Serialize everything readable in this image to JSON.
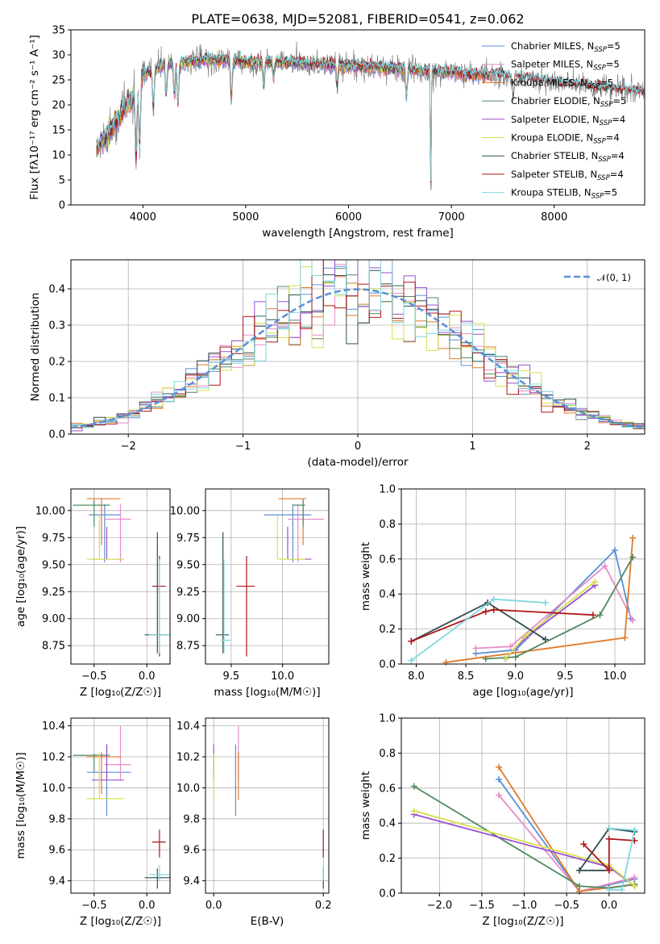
{
  "chart_data": [
    {
      "id": "spectrum",
      "type": "line",
      "title": "PLATE=0638, MJD=52081, FIBERID=0541, z=0.062",
      "xlabel": "wavelength [Angstrom, rest frame]",
      "ylabel": "Flux [fλ10⁻¹⁷ erg cm⁻² s⁻¹ A⁻¹]",
      "xlim": [
        3300,
        8880
      ],
      "ylim": [
        0,
        35
      ],
      "xticks": [
        4000,
        5000,
        6000,
        7000,
        8000
      ],
      "yticks": [
        0,
        5,
        10,
        15,
        20,
        25,
        30,
        35
      ],
      "grid": false,
      "legend_position": "top-right",
      "continuum_x": [
        3550,
        3650,
        3750,
        3850,
        3950,
        4000,
        4100,
        4200,
        4400,
        4600,
        4800,
        5000,
        5200,
        5400,
        5600,
        5800,
        6000,
        6200,
        6400,
        6600,
        6800,
        7000,
        7200,
        7400,
        7600,
        7800,
        8000,
        8200,
        8400,
        8600,
        8800
      ],
      "continuum_y": [
        11,
        14,
        17,
        20,
        23,
        26,
        27,
        28,
        28.5,
        29,
        29,
        28.5,
        28.5,
        28.5,
        28.3,
        28,
        27.8,
        27.5,
        27.3,
        27,
        26.8,
        26.5,
        26,
        26,
        25.5,
        25,
        24.5,
        24,
        23.5,
        23,
        22.5
      ],
      "series": [
        {
          "name": "Chabrier MILES, N",
          "sub": "SSP",
          "suffix": "=5",
          "color": "#5b8fd6",
          "xmax": 7400
        },
        {
          "name": "Salpeter MILES, N",
          "sub": "SSP",
          "suffix": "=5",
          "color": "#e68cc8",
          "xmax": 7400
        },
        {
          "name": "Kroupa MILES, N",
          "sub": "SSP",
          "suffix": "=5",
          "color": "#e07a2a",
          "xmax": 7400
        },
        {
          "name": "Chabrier ELODIE, N",
          "sub": "SSP",
          "suffix": "=5",
          "color": "#4f8a5f",
          "xmax": 7000
        },
        {
          "name": "Salpeter ELODIE, N",
          "sub": "SSP",
          "suffix": "=4",
          "color": "#9b4fcf",
          "xmax": 6800
        },
        {
          "name": "Kroupa ELODIE, N",
          "sub": "SSP",
          "suffix": "=4",
          "color": "#d6e04a",
          "xmax": 6800
        },
        {
          "name": "Chabrier STELIB, N",
          "sub": "SSP",
          "suffix": "=4",
          "color": "#2f4f4f",
          "xmax": 8880
        },
        {
          "name": "Salpeter STELIB, N",
          "sub": "SSP",
          "suffix": "=4",
          "color": "#b01515",
          "xmax": 8880
        },
        {
          "name": "Kroupa STELIB, N",
          "sub": "SSP",
          "suffix": "=5",
          "color": "#7fd6de",
          "xmax": 8880
        }
      ],
      "data_series": {
        "name": "data",
        "color": "#7f7f7f"
      }
    },
    {
      "id": "residuals",
      "type": "line",
      "xlabel": "(data-model)/error",
      "ylabel": "Normed distribution",
      "xlim": [
        -2.5,
        2.5
      ],
      "ylim": [
        0,
        0.48
      ],
      "xticks": [
        -2,
        -1,
        0,
        1,
        2
      ],
      "yticks": [
        0.0,
        0.1,
        0.2,
        0.3,
        0.4
      ],
      "grid": true,
      "legend_position": "top-right",
      "reference_curve": {
        "name": "𝒩(0, 1)",
        "color": "#5b8fd6",
        "style": "dashed"
      },
      "histogram_bin_width": 0.1,
      "histogram_series_colors": [
        "#5b8fd6",
        "#e68cc8",
        "#e07a2a",
        "#4f8a5f",
        "#9b4fcf",
        "#d6e04a",
        "#2f4f4f",
        "#b01515",
        "#7fd6de"
      ]
    },
    {
      "id": "age-vs-Z",
      "type": "scatter",
      "xlabel": "Z [log₁₀(Z/Z☉)]",
      "ylabel": "age  [log₁₀(age/yr)]",
      "xlim": [
        -0.72,
        0.22
      ],
      "ylim": [
        8.58,
        10.2
      ],
      "xticks": [
        -0.5,
        0.0
      ],
      "yticks": [
        8.75,
        9.0,
        9.25,
        9.5,
        9.75,
        10.0
      ],
      "grid": true,
      "points": [
        {
          "x": -0.4,
          "y": 9.96,
          "xlo": -0.55,
          "xhi": -0.25,
          "ylo": 9.52,
          "yhi": 10.06,
          "color": "#5b8fd6"
        },
        {
          "x": -0.25,
          "y": 9.92,
          "xlo": -0.4,
          "xhi": -0.15,
          "ylo": 9.52,
          "yhi": 10.06,
          "color": "#e68cc8"
        },
        {
          "x": -0.43,
          "y": 10.11,
          "xlo": -0.57,
          "xhi": -0.25,
          "ylo": 9.68,
          "yhi": 10.11,
          "color": "#e07a2a"
        },
        {
          "x": -0.5,
          "y": 10.05,
          "xlo": -0.7,
          "xhi": -0.35,
          "ylo": 9.85,
          "yhi": 10.1,
          "color": "#4f8a5f"
        },
        {
          "x": -0.38,
          "y": 9.55,
          "xlo": -0.52,
          "xhi": -0.22,
          "ylo": 9.55,
          "yhi": 9.85,
          "color": "#9b4fcf"
        },
        {
          "x": -0.45,
          "y": 9.55,
          "xlo": -0.57,
          "xhi": -0.22,
          "ylo": 9.55,
          "yhi": 9.96,
          "color": "#d6e04a"
        },
        {
          "x": 0.1,
          "y": 8.85,
          "xlo": -0.02,
          "xhi": 0.22,
          "ylo": 8.68,
          "yhi": 9.8,
          "color": "#2f4f4f"
        },
        {
          "x": 0.12,
          "y": 9.3,
          "xlo": 0.05,
          "xhi": 0.18,
          "ylo": 8.65,
          "yhi": 9.58,
          "color": "#b01515"
        },
        {
          "x": 0.12,
          "y": 8.85,
          "xlo": 0.02,
          "xhi": 0.22,
          "ylo": 8.68,
          "yhi": 9.55,
          "color": "#7fd6de"
        }
      ]
    },
    {
      "id": "age-vs-mass",
      "type": "scatter",
      "xlabel": "mass [log₁₀(M/M☉)]",
      "ylabel": "",
      "xlim": [
        9.25,
        10.45
      ],
      "ylim": [
        8.58,
        10.2
      ],
      "xticks": [
        9.5,
        10.0
      ],
      "yticks": [
        8.75,
        9.0,
        9.25,
        9.5,
        9.75,
        10.0
      ],
      "grid": true,
      "points": [
        {
          "x": 10.1,
          "y": 9.96,
          "xlo": 9.82,
          "xhi": 10.28,
          "ylo": 9.52,
          "yhi": 10.06,
          "color": "#5b8fd6"
        },
        {
          "x": 10.15,
          "y": 9.92,
          "xlo": 10.05,
          "xhi": 10.4,
          "ylo": 9.52,
          "yhi": 10.06,
          "color": "#e68cc8"
        },
        {
          "x": 10.2,
          "y": 10.11,
          "xlo": 9.96,
          "xhi": 10.23,
          "ylo": 9.68,
          "yhi": 10.11,
          "color": "#e07a2a"
        },
        {
          "x": 10.2,
          "y": 10.05,
          "xlo": 10.1,
          "xhi": 10.22,
          "ylo": 9.85,
          "yhi": 10.1,
          "color": "#4f8a5f"
        },
        {
          "x": 10.05,
          "y": 9.55,
          "xlo": 10.05,
          "xhi": 10.28,
          "ylo": 9.55,
          "yhi": 9.85,
          "color": "#9b4fcf"
        },
        {
          "x": 9.95,
          "y": 9.55,
          "xlo": 9.95,
          "xhi": 10.22,
          "ylo": 9.55,
          "yhi": 9.96,
          "color": "#d6e04a"
        },
        {
          "x": 9.42,
          "y": 8.85,
          "xlo": 9.35,
          "xhi": 9.48,
          "ylo": 8.68,
          "yhi": 9.8,
          "color": "#2f4f4f"
        },
        {
          "x": 9.65,
          "y": 9.3,
          "xlo": 9.55,
          "xhi": 9.73,
          "ylo": 8.65,
          "yhi": 9.58,
          "color": "#b01515"
        },
        {
          "x": 9.43,
          "y": 8.8,
          "xlo": 9.4,
          "xhi": 9.5,
          "ylo": 8.68,
          "yhi": 9.55,
          "color": "#7fd6de"
        }
      ]
    },
    {
      "id": "weight-vs-age",
      "type": "line",
      "xlabel": "age  [log₁₀(age/yr)]",
      "ylabel": "mass weight",
      "xlim": [
        7.85,
        10.3
      ],
      "ylim": [
        0,
        1.0
      ],
      "xticks": [
        8.0,
        8.5,
        9.0,
        9.5,
        10.0
      ],
      "yticks": [
        0.0,
        0.2,
        0.4,
        0.6,
        0.8,
        1.0
      ],
      "grid": true,
      "series": [
        {
          "name": "Chabrier MILES",
          "color": "#5b8fd6",
          "x": [
            8.6,
            9.0,
            10.0,
            10.16
          ],
          "y": [
            0.06,
            0.08,
            0.65,
            0.26
          ]
        },
        {
          "name": "Salpeter MILES",
          "color": "#e68cc8",
          "x": [
            8.6,
            8.95,
            9.9,
            10.18
          ],
          "y": [
            0.09,
            0.1,
            0.56,
            0.25
          ]
        },
        {
          "name": "Kroupa MILES",
          "color": "#e07a2a",
          "x": [
            8.3,
            10.1,
            10.18
          ],
          "y": [
            0.01,
            0.15,
            0.72
          ]
        },
        {
          "name": "Chabrier ELODIE",
          "color": "#4f8a5f",
          "x": [
            8.7,
            9.0,
            9.85,
            10.18
          ],
          "y": [
            0.03,
            0.04,
            0.28,
            0.61
          ]
        },
        {
          "name": "Salpeter ELODIE",
          "color": "#9b4fcf",
          "x": [
            8.9,
            9.1,
            9.8
          ],
          "y": [
            0.03,
            0.15,
            0.45
          ]
        },
        {
          "name": "Kroupa ELODIE",
          "color": "#d6e04a",
          "x": [
            8.9,
            9.1,
            9.8
          ],
          "y": [
            0.03,
            0.16,
            0.47
          ]
        },
        {
          "name": "Chabrier STELIB",
          "color": "#2f4f4f",
          "x": [
            7.95,
            8.72,
            9.3
          ],
          "y": [
            0.13,
            0.35,
            0.14
          ]
        },
        {
          "name": "Salpeter STELIB",
          "color": "#b01515",
          "x": [
            7.95,
            8.7,
            8.78,
            9.78
          ],
          "y": [
            0.13,
            0.3,
            0.31,
            0.28
          ]
        },
        {
          "name": "Kroupa STELIB",
          "color": "#7fd6de",
          "x": [
            7.95,
            8.78,
            9.3
          ],
          "y": [
            0.02,
            0.37,
            0.35
          ]
        }
      ]
    },
    {
      "id": "mass-vs-Z",
      "type": "scatter",
      "xlabel": "Z [log₁₀(Z/Z☉)]",
      "ylabel": "mass [log₁₀(M/M☉)]",
      "xlim": [
        -0.72,
        0.22
      ],
      "ylim": [
        9.32,
        10.45
      ],
      "xticks": [
        -0.5,
        0.0
      ],
      "yticks": [
        9.4,
        9.6,
        9.8,
        10.0,
        10.2,
        10.4
      ],
      "grid": true,
      "points": [
        {
          "x": -0.38,
          "y": 10.1,
          "xlo": -0.57,
          "xhi": -0.15,
          "ylo": 9.82,
          "yhi": 10.28,
          "color": "#5b8fd6"
        },
        {
          "x": -0.25,
          "y": 10.15,
          "xlo": -0.4,
          "xhi": -0.15,
          "ylo": 10.05,
          "yhi": 10.4,
          "color": "#e68cc8"
        },
        {
          "x": -0.43,
          "y": 10.2,
          "xlo": -0.57,
          "xhi": -0.25,
          "ylo": 9.96,
          "yhi": 10.23,
          "color": "#e07a2a"
        },
        {
          "x": -0.5,
          "y": 10.21,
          "xlo": -0.7,
          "xhi": -0.35,
          "ylo": 10.1,
          "yhi": 10.22,
          "color": "#4f8a5f"
        },
        {
          "x": -0.38,
          "y": 10.05,
          "xlo": -0.52,
          "xhi": -0.22,
          "ylo": 10.05,
          "yhi": 10.28,
          "color": "#9b4fcf"
        },
        {
          "x": -0.45,
          "y": 9.93,
          "xlo": -0.57,
          "xhi": -0.22,
          "ylo": 9.93,
          "yhi": 10.22,
          "color": "#d6e04a"
        },
        {
          "x": 0.1,
          "y": 9.42,
          "xlo": -0.02,
          "xhi": 0.22,
          "ylo": 9.35,
          "yhi": 9.48,
          "color": "#2f4f4f"
        },
        {
          "x": 0.12,
          "y": 9.65,
          "xlo": 0.05,
          "xhi": 0.18,
          "ylo": 9.55,
          "yhi": 9.73,
          "color": "#b01515"
        },
        {
          "x": 0.12,
          "y": 9.44,
          "xlo": 0.02,
          "xhi": 0.22,
          "ylo": 9.4,
          "yhi": 9.5,
          "color": "#7fd6de"
        }
      ]
    },
    {
      "id": "mass-vs-ebv",
      "type": "scatter",
      "xlabel": "E(B-V)",
      "ylabel": "",
      "xlim": [
        -0.015,
        0.21
      ],
      "ylim": [
        9.32,
        10.45
      ],
      "xticks": [
        0.0,
        0.2
      ],
      "yticks": [
        9.4,
        9.6,
        9.8,
        10.0,
        10.2,
        10.4
      ],
      "grid": true,
      "points": [
        {
          "x": 0.04,
          "y": 10.1,
          "ylo": 9.82,
          "yhi": 10.28,
          "color": "#5b8fd6"
        },
        {
          "x": 0.045,
          "y": 10.15,
          "ylo": 10.05,
          "yhi": 10.4,
          "color": "#e68cc8"
        },
        {
          "x": 0.045,
          "y": 10.2,
          "ylo": 9.92,
          "yhi": 10.23,
          "color": "#e07a2a"
        },
        {
          "x": 0.0,
          "y": 10.21,
          "ylo": 10.1,
          "yhi": 10.22,
          "color": "#4f8a5f"
        },
        {
          "x": 0.0,
          "y": 10.05,
          "ylo": 10.05,
          "yhi": 10.28,
          "color": "#9b4fcf"
        },
        {
          "x": 0.0,
          "y": 9.93,
          "ylo": 9.93,
          "yhi": 10.22,
          "color": "#d6e04a"
        },
        {
          "x": 0.2,
          "y": 9.42,
          "ylo": 9.35,
          "yhi": 9.48,
          "color": "#2f4f4f"
        },
        {
          "x": 0.2,
          "y": 9.65,
          "ylo": 9.55,
          "yhi": 9.73,
          "color": "#b01515"
        },
        {
          "x": 0.2,
          "y": 9.44,
          "ylo": 9.4,
          "yhi": 9.5,
          "color": "#7fd6de"
        }
      ]
    },
    {
      "id": "weight-vs-Z",
      "type": "line",
      "xlabel": "Z [log₁₀(Z/Z☉)]",
      "ylabel": "mass weight",
      "xlim": [
        -2.45,
        0.42
      ],
      "ylim": [
        0,
        1.0
      ],
      "xticks": [
        -2.0,
        -1.5,
        -1.0,
        -0.5,
        0.0
      ],
      "yticks": [
        0.0,
        0.2,
        0.4,
        0.6,
        0.8,
        1.0
      ],
      "grid": true,
      "series": [
        {
          "name": "Chabrier MILES",
          "color": "#5b8fd6",
          "x": [
            -1.3,
            -0.35,
            0.3
          ],
          "y": [
            0.65,
            0.01,
            0.08
          ]
        },
        {
          "name": "Salpeter MILES",
          "color": "#e68cc8",
          "x": [
            -1.3,
            -0.35,
            0.3
          ],
          "y": [
            0.56,
            0.01,
            0.09
          ]
        },
        {
          "name": "Kroupa MILES",
          "color": "#e07a2a",
          "x": [
            -1.3,
            -0.35,
            0.3
          ],
          "y": [
            0.72,
            0.01,
            0.05
          ]
        },
        {
          "name": "Chabrier ELODIE",
          "color": "#4f8a5f",
          "x": [
            -2.3,
            -0.35,
            0.0,
            0.3
          ],
          "y": [
            0.61,
            0.04,
            0.03,
            0.05
          ]
        },
        {
          "name": "Salpeter ELODIE",
          "color": "#9b4fcf",
          "x": [
            -2.3,
            0.0,
            0.3
          ],
          "y": [
            0.45,
            0.15,
            0.04
          ]
        },
        {
          "name": "Kroupa ELODIE",
          "color": "#d6e04a",
          "x": [
            -2.3,
            0.0,
            0.3
          ],
          "y": [
            0.47,
            0.16,
            0.04
          ]
        },
        {
          "name": "Chabrier STELIB",
          "color": "#2f4f4f",
          "x": [
            0.3,
            0.0,
            -0.35,
            0.0
          ],
          "y": [
            0.35,
            0.37,
            0.13,
            0.13
          ]
        },
        {
          "name": "Salpeter STELIB",
          "color": "#b01515",
          "x": [
            -0.3,
            0.0,
            0.0,
            0.3
          ],
          "y": [
            0.28,
            0.13,
            0.31,
            0.3
          ]
        },
        {
          "name": "Kroupa STELIB",
          "color": "#7fd6de",
          "x": [
            0.0,
            0.3,
            0.15,
            0.0
          ],
          "y": [
            0.37,
            0.36,
            0.02,
            0.02
          ]
        }
      ]
    }
  ]
}
